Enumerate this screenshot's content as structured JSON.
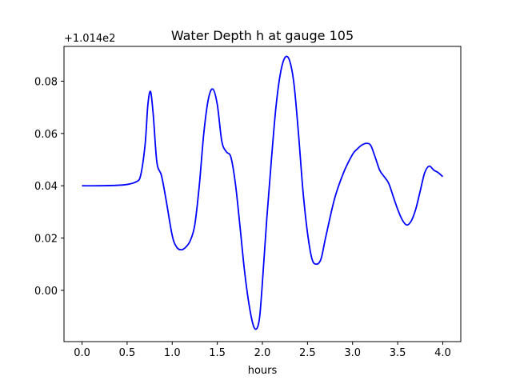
{
  "chart_data": {
    "type": "line",
    "title": "Water Depth h at gauge 105",
    "xlabel": "hours",
    "ylabel": "",
    "y_offset_label": "+1.014e2",
    "y_offset": 101.4,
    "xlim": [
      -0.2,
      4.2
    ],
    "ylim": [
      -0.0196,
      0.0933
    ],
    "grid": false,
    "x_ticks": [
      0.0,
      0.5,
      1.0,
      1.5,
      2.0,
      2.5,
      3.0,
      3.5,
      4.0
    ],
    "x_tick_labels": [
      "0.0",
      "0.5",
      "1.0",
      "1.5",
      "2.0",
      "2.5",
      "3.0",
      "3.5",
      "4.0"
    ],
    "y_ticks": [
      0.0,
      0.02,
      0.04,
      0.06,
      0.08
    ],
    "y_tick_labels": [
      "0.00",
      "0.02",
      "0.04",
      "0.06",
      "0.08"
    ],
    "series": [
      {
        "color": "#0000ff",
        "x": [
          0.0,
          0.2,
          0.4,
          0.5,
          0.6,
          0.65,
          0.7,
          0.73,
          0.76,
          0.79,
          0.83,
          0.88,
          0.93,
          1.0,
          1.05,
          1.1,
          1.15,
          1.2,
          1.25,
          1.3,
          1.35,
          1.4,
          1.45,
          1.5,
          1.55,
          1.6,
          1.65,
          1.7,
          1.75,
          1.8,
          1.85,
          1.9,
          1.94,
          1.97,
          2.0,
          2.05,
          2.1,
          2.15,
          2.2,
          2.25,
          2.3,
          2.35,
          2.4,
          2.45,
          2.5,
          2.55,
          2.6,
          2.65,
          2.7,
          2.8,
          2.9,
          3.0,
          3.05,
          3.1,
          3.15,
          3.2,
          3.25,
          3.3,
          3.35,
          3.4,
          3.45,
          3.5,
          3.55,
          3.6,
          3.65,
          3.7,
          3.75,
          3.8,
          3.85,
          3.9,
          3.95,
          4.0
        ],
        "y": [
          0.04,
          0.04,
          0.0402,
          0.0405,
          0.0415,
          0.044,
          0.056,
          0.071,
          0.076,
          0.067,
          0.049,
          0.044,
          0.035,
          0.021,
          0.0165,
          0.0155,
          0.0165,
          0.019,
          0.025,
          0.04,
          0.06,
          0.073,
          0.077,
          0.071,
          0.057,
          0.053,
          0.051,
          0.041,
          0.025,
          0.008,
          -0.005,
          -0.0135,
          -0.0145,
          -0.01,
          0.003,
          0.028,
          0.05,
          0.07,
          0.083,
          0.089,
          0.088,
          0.079,
          0.06,
          0.038,
          0.022,
          0.012,
          0.01,
          0.012,
          0.02,
          0.035,
          0.045,
          0.052,
          0.054,
          0.0555,
          0.0562,
          0.0555,
          0.051,
          0.046,
          0.0435,
          0.041,
          0.036,
          0.031,
          0.027,
          0.025,
          0.0265,
          0.031,
          0.038,
          0.045,
          0.0475,
          0.046,
          0.045,
          0.0435
        ]
      }
    ]
  }
}
